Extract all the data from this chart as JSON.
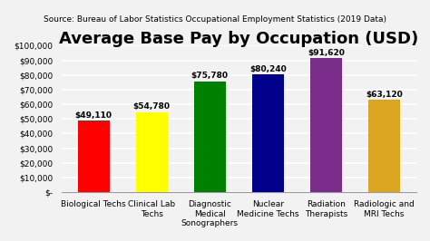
{
  "title": "Average Base Pay by Occupation (USD)",
  "subtitle": "Source: Bureau of Labor Statistics Occupational Employment Statistics (2019 Data)",
  "categories": [
    "Biological Techs",
    "Clinical Lab\nTechs",
    "Diagnostic\nMedical\nSonographers",
    "Nuclear\nMedicine Techs",
    "Radiation\nTherapists",
    "Radiologic and\nMRI Techs"
  ],
  "values": [
    49110,
    54780,
    75780,
    80240,
    91620,
    63120
  ],
  "bar_colors": [
    "#FF0000",
    "#FFFF00",
    "#008000",
    "#00008B",
    "#7B2D8B",
    "#DAA520"
  ],
  "value_labels": [
    "$49,110",
    "$54,780",
    "$75,780",
    "$80,240",
    "$91,620",
    "$63,120"
  ],
  "ylim": [
    0,
    100000
  ],
  "yticks": [
    0,
    10000,
    20000,
    30000,
    40000,
    50000,
    60000,
    70000,
    80000,
    90000,
    100000
  ],
  "ytick_labels": [
    "$-",
    "$10,000",
    "$20,000",
    "$30,000",
    "$40,000",
    "$50,000",
    "$60,000",
    "$70,000",
    "$80,000",
    "$90,000",
    "$100,000"
  ],
  "background_color": "#F2F2F2",
  "title_fontsize": 13,
  "subtitle_fontsize": 6.5,
  "bar_label_fontsize": 6.5,
  "ytick_fontsize": 6.5,
  "xtick_fontsize": 6.5
}
